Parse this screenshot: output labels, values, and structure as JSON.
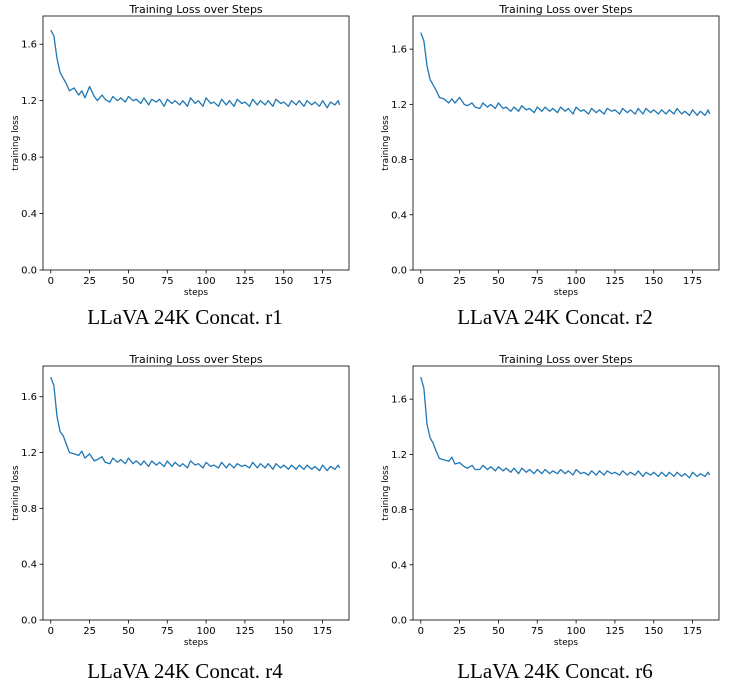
{
  "chart_data": [
    {
      "type": "line",
      "title": "Training Loss over Steps",
      "xlabel": "steps",
      "ylabel": "training loss",
      "caption": "LLaVA 24K Concat. r1",
      "xlim": [
        -5,
        192
      ],
      "ylim": [
        0.0,
        1.8
      ],
      "xticks": [
        0,
        25,
        50,
        75,
        100,
        125,
        150,
        175
      ],
      "yticks": [
        0.0,
        0.4,
        0.8,
        1.2,
        1.6
      ],
      "grid": false,
      "color": "#1f77b4",
      "series": [
        {
          "x": [
            0,
            2,
            4,
            6,
            8,
            10,
            12,
            15,
            18,
            20,
            22,
            25,
            28,
            30,
            33,
            35,
            38,
            40,
            43,
            45,
            48,
            50,
            53,
            55,
            58,
            60,
            63,
            65,
            68,
            70,
            73,
            75,
            78,
            80,
            83,
            85,
            88,
            90,
            93,
            95,
            98,
            100,
            103,
            105,
            108,
            110,
            113,
            115,
            118,
            120,
            123,
            125,
            128,
            130,
            133,
            135,
            138,
            140,
            143,
            145,
            148,
            150,
            153,
            155,
            158,
            160,
            163,
            165,
            168,
            170,
            173,
            175,
            178,
            180,
            183,
            185,
            186
          ],
          "values": [
            1.7,
            1.66,
            1.5,
            1.4,
            1.36,
            1.32,
            1.27,
            1.29,
            1.24,
            1.27,
            1.22,
            1.3,
            1.23,
            1.2,
            1.24,
            1.21,
            1.19,
            1.23,
            1.2,
            1.22,
            1.19,
            1.23,
            1.2,
            1.21,
            1.18,
            1.22,
            1.17,
            1.21,
            1.19,
            1.21,
            1.16,
            1.21,
            1.18,
            1.2,
            1.17,
            1.2,
            1.16,
            1.22,
            1.18,
            1.2,
            1.16,
            1.22,
            1.18,
            1.19,
            1.16,
            1.21,
            1.17,
            1.2,
            1.16,
            1.21,
            1.18,
            1.19,
            1.16,
            1.21,
            1.17,
            1.2,
            1.17,
            1.2,
            1.16,
            1.21,
            1.18,
            1.19,
            1.16,
            1.2,
            1.17,
            1.2,
            1.16,
            1.2,
            1.17,
            1.19,
            1.16,
            1.2,
            1.15,
            1.19,
            1.17,
            1.2,
            1.17
          ]
        }
      ]
    },
    {
      "type": "line",
      "title": "Training Loss over Steps",
      "xlabel": "steps",
      "ylabel": "training loss",
      "caption": "LLaVA 24K Concat. r2",
      "xlim": [
        -5,
        192
      ],
      "ylim": [
        0.0,
        1.84
      ],
      "xticks": [
        0,
        25,
        50,
        75,
        100,
        125,
        150,
        175
      ],
      "yticks": [
        0.0,
        0.4,
        0.8,
        1.2,
        1.6
      ],
      "grid": false,
      "color": "#1f77b4",
      "series": [
        {
          "x": [
            0,
            2,
            4,
            6,
            8,
            10,
            12,
            15,
            18,
            20,
            22,
            25,
            28,
            30,
            33,
            35,
            38,
            40,
            43,
            45,
            48,
            50,
            53,
            55,
            58,
            60,
            63,
            65,
            68,
            70,
            73,
            75,
            78,
            80,
            83,
            85,
            88,
            90,
            93,
            95,
            98,
            100,
            103,
            105,
            108,
            110,
            113,
            115,
            118,
            120,
            123,
            125,
            128,
            130,
            133,
            135,
            138,
            140,
            143,
            145,
            148,
            150,
            153,
            155,
            158,
            160,
            163,
            165,
            168,
            170,
            173,
            175,
            178,
            180,
            183,
            185,
            186
          ],
          "values": [
            1.72,
            1.66,
            1.48,
            1.38,
            1.34,
            1.3,
            1.25,
            1.24,
            1.21,
            1.24,
            1.21,
            1.25,
            1.2,
            1.19,
            1.21,
            1.18,
            1.17,
            1.21,
            1.18,
            1.2,
            1.17,
            1.21,
            1.17,
            1.18,
            1.15,
            1.18,
            1.15,
            1.19,
            1.16,
            1.17,
            1.14,
            1.18,
            1.15,
            1.18,
            1.15,
            1.17,
            1.14,
            1.18,
            1.15,
            1.17,
            1.13,
            1.18,
            1.15,
            1.16,
            1.13,
            1.17,
            1.14,
            1.16,
            1.13,
            1.17,
            1.15,
            1.16,
            1.13,
            1.17,
            1.14,
            1.16,
            1.13,
            1.17,
            1.13,
            1.17,
            1.14,
            1.16,
            1.13,
            1.16,
            1.13,
            1.16,
            1.13,
            1.17,
            1.13,
            1.15,
            1.12,
            1.16,
            1.12,
            1.15,
            1.12,
            1.16,
            1.13
          ]
        }
      ]
    },
    {
      "type": "line",
      "title": "Training Loss over Steps",
      "xlabel": "steps",
      "ylabel": "training loss",
      "caption": "LLaVA 24K Concat. r4",
      "xlim": [
        -5,
        192
      ],
      "ylim": [
        0.0,
        1.82
      ],
      "xticks": [
        0,
        25,
        50,
        75,
        100,
        125,
        150,
        175
      ],
      "yticks": [
        0.0,
        0.4,
        0.8,
        1.2,
        1.6
      ],
      "grid": false,
      "color": "#1f77b4",
      "series": [
        {
          "x": [
            0,
            2,
            4,
            6,
            8,
            10,
            12,
            15,
            18,
            20,
            22,
            25,
            28,
            30,
            33,
            35,
            38,
            40,
            43,
            45,
            48,
            50,
            53,
            55,
            58,
            60,
            63,
            65,
            68,
            70,
            73,
            75,
            78,
            80,
            83,
            85,
            88,
            90,
            93,
            95,
            98,
            100,
            103,
            105,
            108,
            110,
            113,
            115,
            118,
            120,
            123,
            125,
            128,
            130,
            133,
            135,
            138,
            140,
            143,
            145,
            148,
            150,
            153,
            155,
            158,
            160,
            163,
            165,
            168,
            170,
            173,
            175,
            178,
            180,
            183,
            185,
            186
          ],
          "values": [
            1.74,
            1.68,
            1.46,
            1.35,
            1.32,
            1.26,
            1.2,
            1.19,
            1.18,
            1.21,
            1.16,
            1.19,
            1.14,
            1.15,
            1.17,
            1.13,
            1.12,
            1.16,
            1.13,
            1.15,
            1.12,
            1.16,
            1.12,
            1.14,
            1.11,
            1.14,
            1.1,
            1.14,
            1.11,
            1.13,
            1.1,
            1.14,
            1.1,
            1.13,
            1.1,
            1.12,
            1.09,
            1.14,
            1.11,
            1.12,
            1.09,
            1.13,
            1.1,
            1.11,
            1.09,
            1.13,
            1.09,
            1.12,
            1.09,
            1.12,
            1.1,
            1.11,
            1.09,
            1.13,
            1.09,
            1.12,
            1.09,
            1.12,
            1.08,
            1.12,
            1.09,
            1.11,
            1.08,
            1.11,
            1.08,
            1.11,
            1.08,
            1.11,
            1.08,
            1.1,
            1.07,
            1.11,
            1.07,
            1.1,
            1.08,
            1.11,
            1.09
          ]
        }
      ]
    },
    {
      "type": "line",
      "title": "Training Loss over Steps",
      "xlabel": "steps",
      "ylabel": "training loss",
      "caption": "LLaVA 24K Concat. r6",
      "xlim": [
        -5,
        192
      ],
      "ylim": [
        0.0,
        1.84
      ],
      "xticks": [
        0,
        25,
        50,
        75,
        100,
        125,
        150,
        175
      ],
      "yticks": [
        0.0,
        0.4,
        0.8,
        1.2,
        1.6
      ],
      "grid": false,
      "color": "#1f77b4",
      "series": [
        {
          "x": [
            0,
            2,
            4,
            6,
            8,
            10,
            12,
            15,
            18,
            20,
            22,
            25,
            28,
            30,
            33,
            35,
            38,
            40,
            43,
            45,
            48,
            50,
            53,
            55,
            58,
            60,
            63,
            65,
            68,
            70,
            73,
            75,
            78,
            80,
            83,
            85,
            88,
            90,
            93,
            95,
            98,
            100,
            103,
            105,
            108,
            110,
            113,
            115,
            118,
            120,
            123,
            125,
            128,
            130,
            133,
            135,
            138,
            140,
            143,
            145,
            148,
            150,
            153,
            155,
            158,
            160,
            163,
            165,
            168,
            170,
            173,
            175,
            178,
            180,
            183,
            185,
            186
          ],
          "values": [
            1.76,
            1.68,
            1.42,
            1.32,
            1.28,
            1.22,
            1.17,
            1.16,
            1.15,
            1.18,
            1.13,
            1.14,
            1.11,
            1.1,
            1.12,
            1.09,
            1.09,
            1.12,
            1.09,
            1.11,
            1.08,
            1.11,
            1.08,
            1.1,
            1.07,
            1.1,
            1.06,
            1.1,
            1.07,
            1.09,
            1.06,
            1.09,
            1.06,
            1.09,
            1.06,
            1.08,
            1.06,
            1.09,
            1.06,
            1.08,
            1.05,
            1.09,
            1.06,
            1.07,
            1.05,
            1.08,
            1.05,
            1.08,
            1.05,
            1.08,
            1.06,
            1.07,
            1.05,
            1.08,
            1.05,
            1.07,
            1.05,
            1.08,
            1.04,
            1.07,
            1.05,
            1.07,
            1.04,
            1.07,
            1.04,
            1.07,
            1.04,
            1.07,
            1.04,
            1.06,
            1.03,
            1.07,
            1.04,
            1.06,
            1.04,
            1.07,
            1.05
          ]
        }
      ]
    }
  ]
}
